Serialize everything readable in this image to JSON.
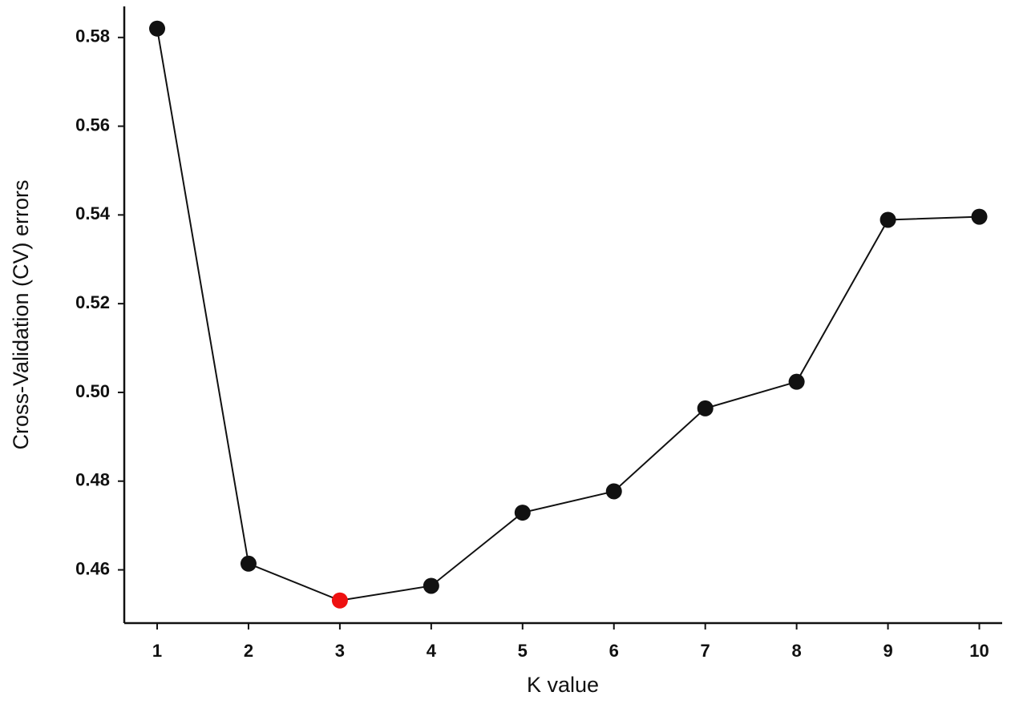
{
  "chart_data": {
    "type": "line",
    "x_label": "K value",
    "y_label": "Cross-Validation (CV) errors",
    "x": [
      1,
      2,
      3,
      4,
      5,
      6,
      7,
      8,
      9,
      10
    ],
    "series": [
      {
        "color": "#111111",
        "values": [
          0.582,
          0.4614,
          0.4531,
          0.4564,
          0.4729,
          0.4777,
          0.4964,
          0.5024,
          0.5389,
          0.5396
        ],
        "point_colors": [
          "#111111",
          "#111111",
          "#ee1111",
          "#111111",
          "#111111",
          "#111111",
          "#111111",
          "#111111",
          "#111111",
          "#111111"
        ]
      }
    ],
    "xlim": [
      0.64,
      10.25
    ],
    "ylim": [
      0.448,
      0.587
    ],
    "xticks": [
      1,
      2,
      3,
      4,
      5,
      6,
      7,
      8,
      9,
      10
    ],
    "yticks": [
      0.46,
      0.48,
      {
        "value": 0.5,
        "label": "0.50"
      },
      0.52,
      0.54,
      0.56,
      0.58
    ]
  }
}
